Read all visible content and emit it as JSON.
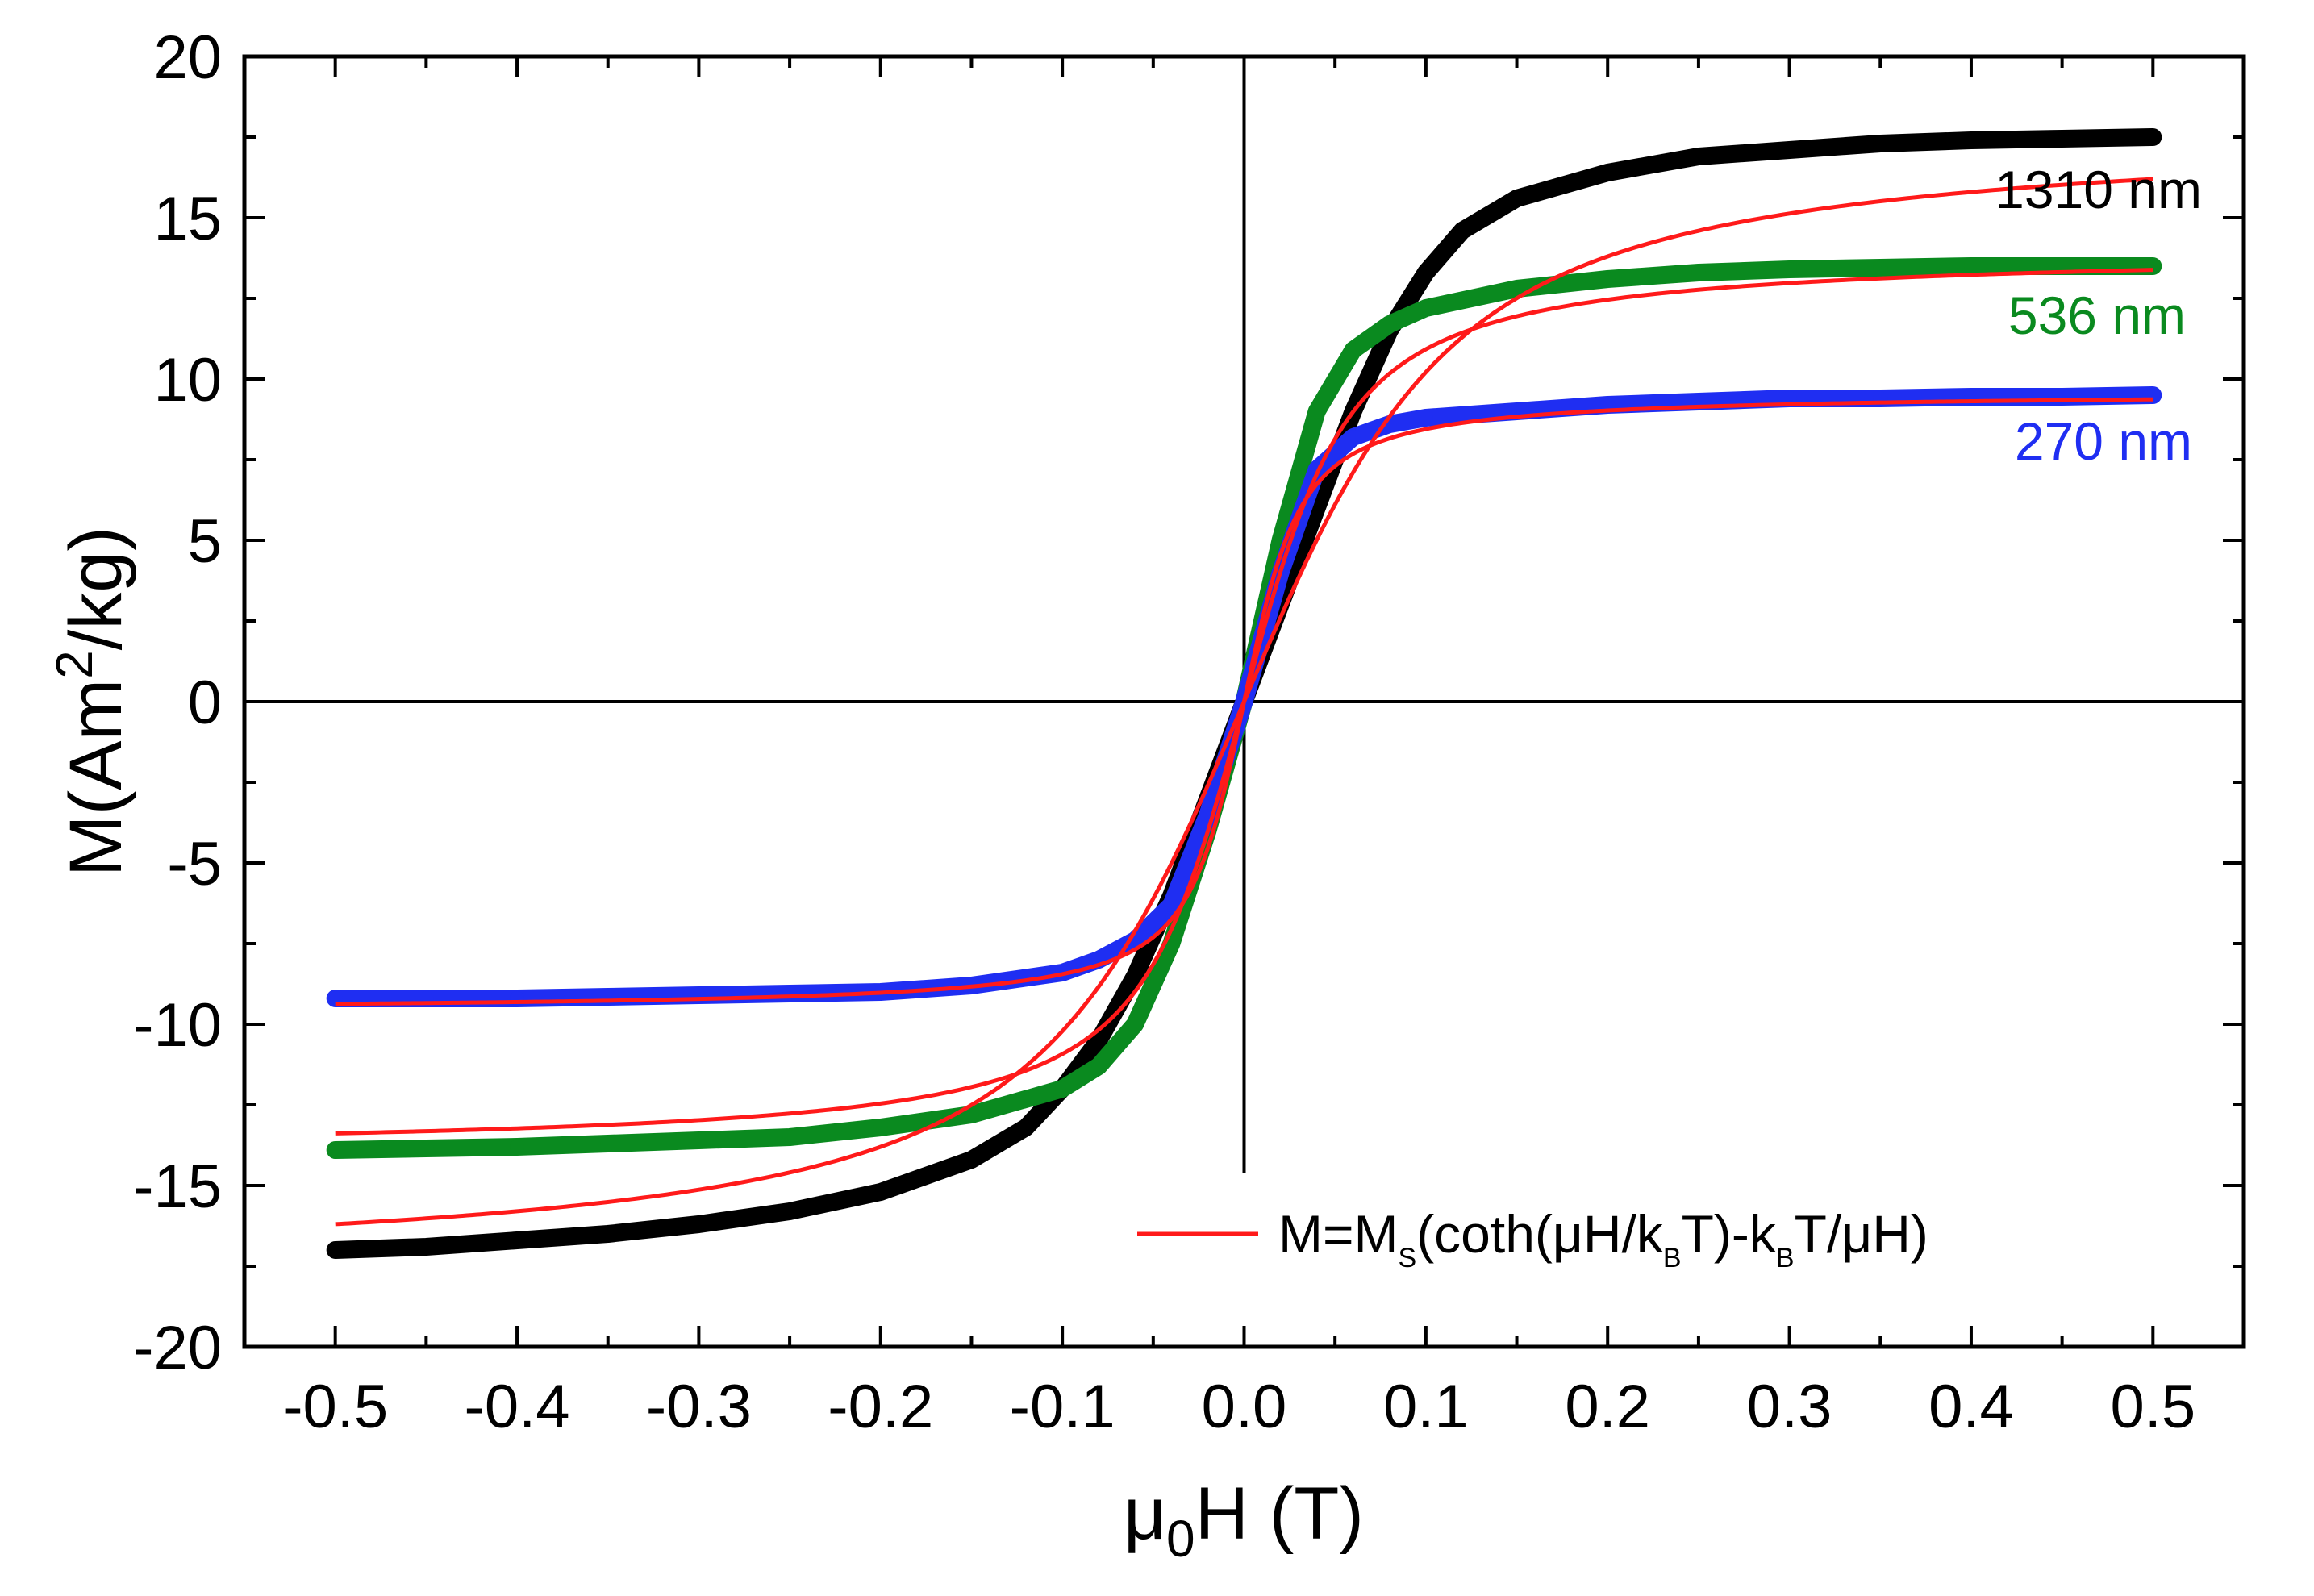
{
  "chart_data": {
    "type": "scatter",
    "xlabel": "μ0H (T)",
    "xlabel_parts": {
      "main": "μ",
      "sub": "0",
      "rest": "H (T)"
    },
    "ylabel": "M(Am2/kg)",
    "ylabel_parts": {
      "pre": "M(Am",
      "sup": "2",
      "post": "/kg)"
    },
    "xlim": [
      -0.55,
      0.55
    ],
    "ylim": [
      -20,
      20
    ],
    "xticks": [
      -0.5,
      -0.4,
      -0.3,
      -0.2,
      -0.1,
      0.0,
      0.1,
      0.2,
      0.3,
      0.4,
      0.5
    ],
    "xtick_labels": [
      "-0.5",
      "-0.4",
      "-0.3",
      "-0.2",
      "-0.1",
      "0.0",
      "0.1",
      "0.2",
      "0.3",
      "0.4",
      "0.5"
    ],
    "yticks": [
      -20,
      -15,
      -10,
      -5,
      0,
      5,
      10,
      15,
      20
    ],
    "ytick_labels": [
      "-20",
      "-15",
      "-10",
      "-5",
      "0",
      "5",
      "10",
      "15",
      "20"
    ],
    "zero_lines": true,
    "series": [
      {
        "name": "1310 nm",
        "color": "#000000",
        "x": [
          -0.5,
          -0.45,
          -0.4,
          -0.35,
          -0.3,
          -0.25,
          -0.2,
          -0.15,
          -0.12,
          -0.1,
          -0.08,
          -0.06,
          -0.04,
          -0.02,
          0.0,
          0.02,
          0.04,
          0.06,
          0.08,
          0.1,
          0.12,
          0.15,
          0.2,
          0.25,
          0.3,
          0.35,
          0.4,
          0.45,
          0.5
        ],
        "y": [
          -17.0,
          -16.9,
          -16.7,
          -16.5,
          -16.2,
          -15.8,
          -15.2,
          -14.2,
          -13.2,
          -12.0,
          -10.5,
          -8.5,
          -6.0,
          -3.0,
          0.0,
          3.0,
          6.0,
          9.0,
          11.5,
          13.3,
          14.6,
          15.6,
          16.4,
          16.9,
          17.1,
          17.3,
          17.4,
          17.45,
          17.5
        ]
      },
      {
        "name": "536 nm",
        "color": "#0a8a1f",
        "x": [
          -0.5,
          -0.45,
          -0.4,
          -0.35,
          -0.3,
          -0.25,
          -0.2,
          -0.15,
          -0.1,
          -0.08,
          -0.06,
          -0.04,
          -0.02,
          0.0,
          0.02,
          0.04,
          0.06,
          0.08,
          0.1,
          0.15,
          0.2,
          0.25,
          0.3,
          0.35,
          0.4,
          0.45,
          0.5
        ],
        "y": [
          -13.9,
          -13.85,
          -13.8,
          -13.7,
          -13.6,
          -13.5,
          -13.2,
          -12.8,
          -12.0,
          -11.3,
          -10.0,
          -7.5,
          -4.0,
          0.0,
          5.0,
          9.0,
          10.9,
          11.7,
          12.2,
          12.8,
          13.1,
          13.3,
          13.4,
          13.45,
          13.5,
          13.5,
          13.5
        ]
      },
      {
        "name": "270 nm",
        "color": "#1f2ef2",
        "x": [
          -0.5,
          -0.45,
          -0.4,
          -0.35,
          -0.3,
          -0.25,
          -0.2,
          -0.15,
          -0.1,
          -0.08,
          -0.06,
          -0.04,
          -0.02,
          0.0,
          0.02,
          0.04,
          0.06,
          0.08,
          0.1,
          0.15,
          0.2,
          0.25,
          0.3,
          0.35,
          0.4,
          0.45,
          0.5
        ],
        "y": [
          -9.2,
          -9.2,
          -9.2,
          -9.15,
          -9.1,
          -9.05,
          -9.0,
          -8.8,
          -8.4,
          -8.0,
          -7.4,
          -6.3,
          -3.5,
          0.0,
          4.0,
          7.2,
          8.2,
          8.6,
          8.8,
          9.0,
          9.2,
          9.3,
          9.4,
          9.4,
          9.45,
          9.45,
          9.5
        ]
      }
    ],
    "fits": [
      {
        "for": "1310 nm",
        "ms": 17.8,
        "a": 0.045,
        "offset": 0.0
      },
      {
        "for": "536 nm",
        "ms": 14.0,
        "a": 0.022,
        "offset": 0.0
      },
      {
        "for": "270 nm",
        "ms": 9.6,
        "a": 0.012,
        "offset": 0.0
      }
    ],
    "fit_color": "#ff1a1a",
    "legend": {
      "label": "M=MS(coth(μH/kBT)-kBT/μH)",
      "parts": {
        "a": "M=M",
        "s": "S",
        "b": "(coth(μH/k",
        "k1": "B",
        "c": "T)-k",
        "k2": "B",
        "d": "T/μH)"
      }
    },
    "labels": {
      "s1310": "1310 nm",
      "s536": "536 nm",
      "s270": "270 nm"
    }
  }
}
